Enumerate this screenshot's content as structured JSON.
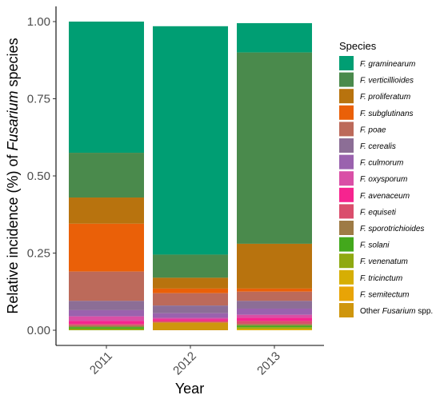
{
  "chart_data": {
    "type": "bar",
    "stacked": true,
    "x_title": "Year",
    "y_title_prefix": "Relative incidence (%) of ",
    "y_title_italic": "Fusarium",
    "y_title_suffix": " species",
    "categories": [
      "2011",
      "2012",
      "2013"
    ],
    "ylim": [
      0,
      1
    ],
    "yticks": [
      "0.00",
      "0.25",
      "0.50",
      "0.75",
      "1.00"
    ],
    "ytick_values": [
      0,
      0.25,
      0.5,
      0.75,
      1.0
    ],
    "legend": {
      "title": "Species",
      "placement": "right"
    },
    "series": [
      {
        "name": "F. graminearum",
        "color": "#009E73",
        "values": [
          0.425,
          0.74,
          0.095
        ]
      },
      {
        "name": "F. verticillioides",
        "color": "#4A8A4C",
        "values": [
          0.145,
          0.075,
          0.62
        ]
      },
      {
        "name": "F. proliferatum",
        "color": "#B8730E",
        "values": [
          0.085,
          0.035,
          0.145
        ]
      },
      {
        "name": "F. subglutinans",
        "color": "#EA6008",
        "values": [
          0.155,
          0.015,
          0.01
        ]
      },
      {
        "name": "F. poae",
        "color": "#BC6A5A",
        "values": [
          0.095,
          0.04,
          0.03
        ]
      },
      {
        "name": "F. cerealis",
        "color": "#8C6E96",
        "values": [
          0.03,
          0.025,
          0.025
        ]
      },
      {
        "name": "F. culmorum",
        "color": "#9A62AE",
        "values": [
          0.02,
          0.015,
          0.02
        ]
      },
      {
        "name": "F. oxysporum",
        "color": "#D94FA6",
        "values": [
          0.015,
          0.005,
          0.01
        ]
      },
      {
        "name": "F. avenaceum",
        "color": "#F6248F",
        "values": [
          0.01,
          0.005,
          0.01
        ]
      },
      {
        "name": "F. equiseti",
        "color": "#DA4E6C",
        "values": [
          0.005,
          0.005,
          0.01
        ]
      },
      {
        "name": "F. sporotrichioides",
        "color": "#9E7B45",
        "values": [
          0.005,
          0.0,
          0.005
        ]
      },
      {
        "name": "F. solani",
        "color": "#43A81C",
        "values": [
          0.005,
          0.0,
          0.005
        ]
      },
      {
        "name": "F. venenatum",
        "color": "#8FA911",
        "values": [
          0.005,
          0.0,
          0.005
        ]
      },
      {
        "name": "F. tricinctum",
        "color": "#D6AE04",
        "values": [
          0.0,
          0.0,
          0.005
        ]
      },
      {
        "name": "F. semitectum",
        "color": "#E8A406",
        "values": [
          0.0,
          0.0,
          0.0
        ]
      },
      {
        "name": "Other Fusarium spp.",
        "name_prefix": "Other ",
        "name_italic": "Fusarium",
        "name_suffix": " spp.",
        "color": "#CF960D",
        "values": [
          0.0,
          0.025,
          0.0
        ]
      }
    ]
  }
}
